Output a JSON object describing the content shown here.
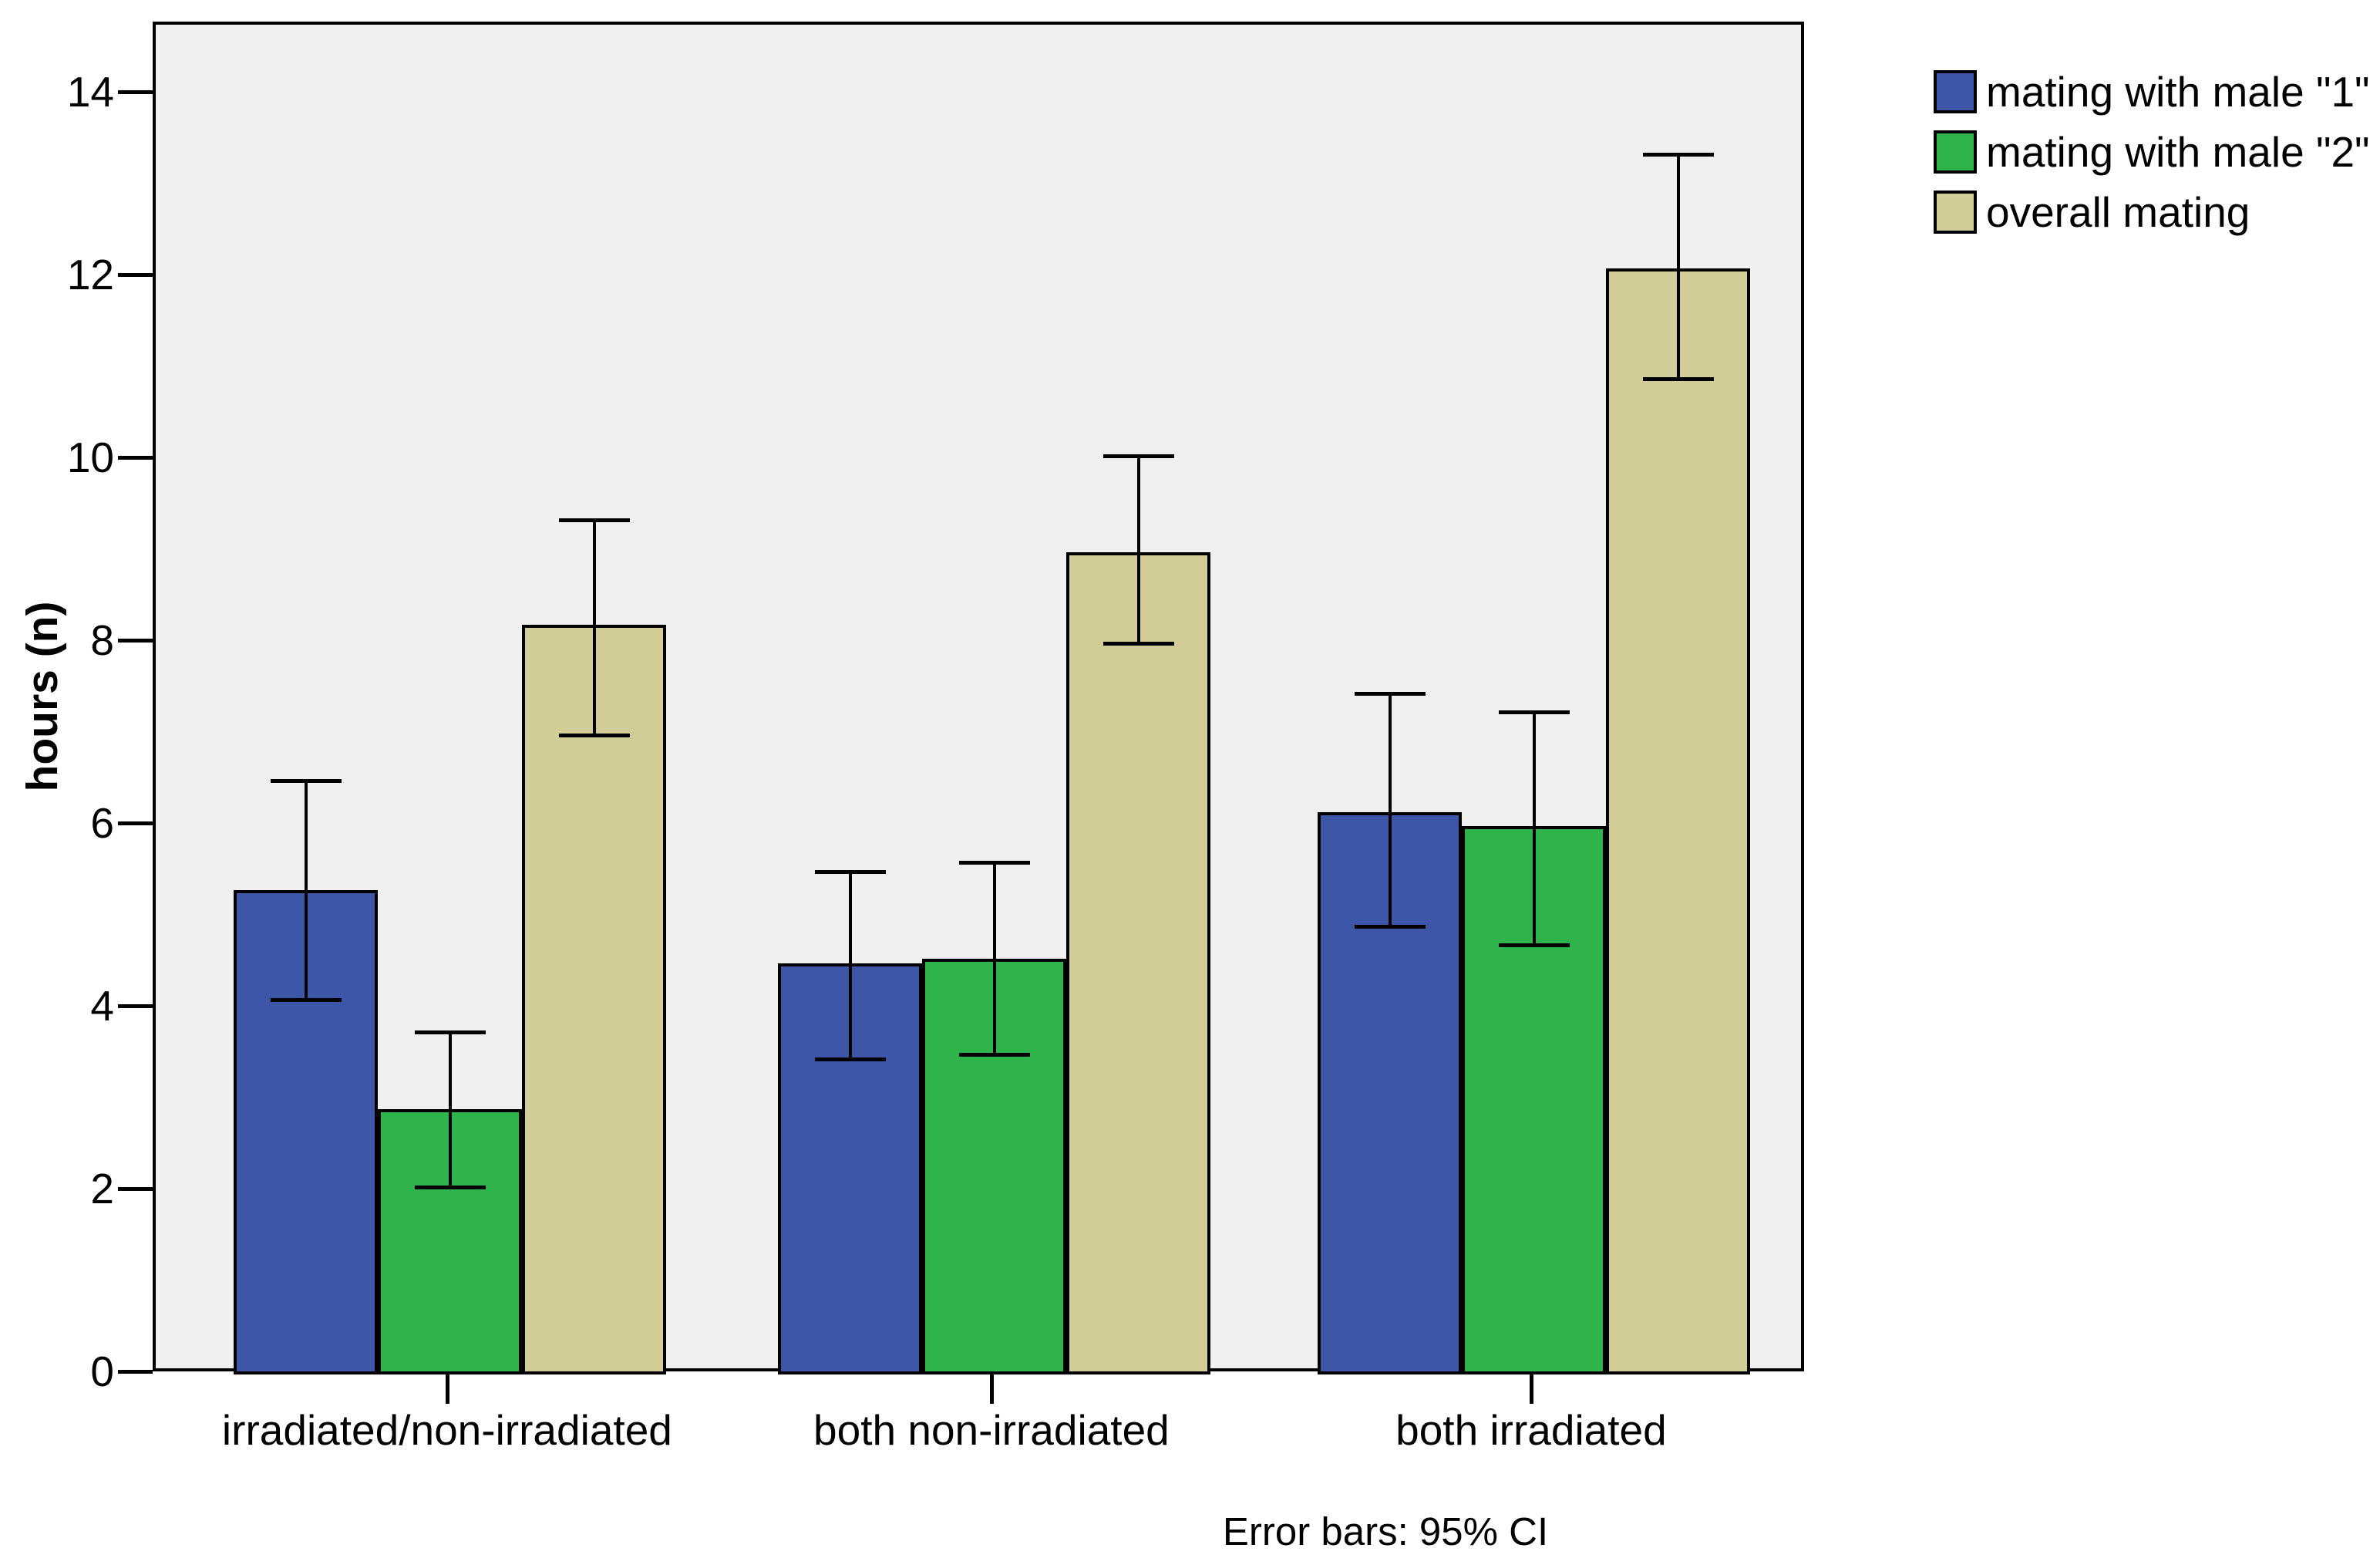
{
  "figure": {
    "caption": "Error bars: 95% CI"
  },
  "chart_data": {
    "type": "bar",
    "title": "",
    "xlabel": "",
    "ylabel": "hours (n)",
    "ylim": [
      0,
      14.77
    ],
    "yticks": [
      0,
      2,
      4,
      6,
      8,
      10,
      12,
      14
    ],
    "grid": false,
    "legend_position": "top-right",
    "error_bar_note": "Error bars: 95% CI",
    "plot_background": "#f0f0ee",
    "categories": [
      "irradiated/non-irradiated",
      "both non-irradiated",
      "both irradiated"
    ],
    "series": [
      {
        "name": "mating with male \"1\"",
        "color": "#3e56a8",
        "values": [
          5.3,
          4.5,
          6.15
        ],
        "ci_low": [
          4.1,
          3.45,
          4.9
        ],
        "ci_high": [
          6.5,
          5.5,
          7.45
        ]
      },
      {
        "name": "mating with male \"2\"",
        "color": "#2eb44a",
        "values": [
          2.9,
          4.55,
          6.0
        ],
        "ci_low": [
          2.05,
          3.5,
          4.7
        ],
        "ci_high": [
          3.75,
          5.6,
          7.25
        ]
      },
      {
        "name": "overall mating",
        "color": "#d2cc96",
        "values": [
          8.2,
          9.0,
          12.1
        ],
        "ci_low": [
          7.0,
          8.0,
          10.9
        ],
        "ci_high": [
          9.35,
          10.05,
          13.35
        ]
      }
    ]
  }
}
